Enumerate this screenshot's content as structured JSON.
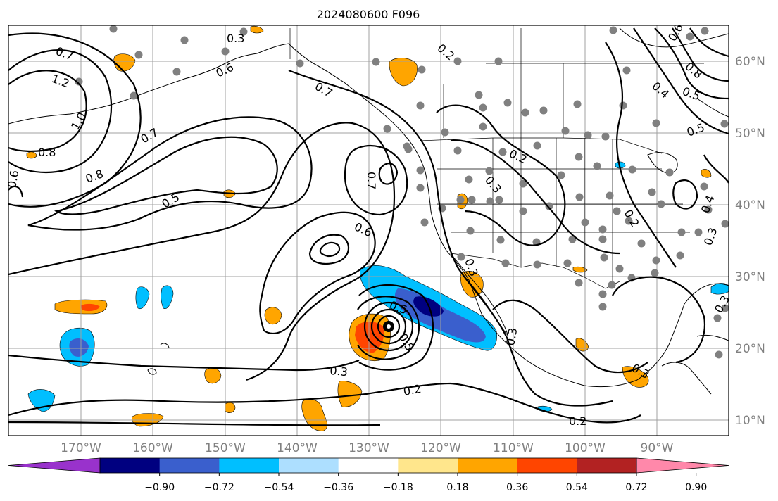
{
  "title": "2024080600 F096",
  "lon_labels": [
    "170°W",
    "160°W",
    "150°W",
    "140°W",
    "130°W",
    "120°W",
    "110°W",
    "100°W",
    "90°W"
  ],
  "lat_labels": [
    "60°N",
    "50°N",
    "40°N",
    "30°N",
    "20°N",
    "10°N"
  ],
  "colorbar": {
    "ticks": [
      "−0.90",
      "−0.72",
      "−0.54",
      "−0.36",
      "−0.18",
      "0.18",
      "0.36",
      "0.54",
      "0.72",
      "0.90"
    ],
    "colors": [
      "#9932CC",
      "#000080",
      "#3A5FCD",
      "#00BFFF",
      "#ADDFFF",
      "#FFFFFF",
      "#FFE68C",
      "#FFA500",
      "#FF4500",
      "#B22222",
      "#FF88AA"
    ]
  },
  "contour_labels": [
    "0.7",
    "1.2",
    "1.0",
    "0.8",
    "0.6",
    "0.7",
    "0.8",
    "0.3",
    "0.6",
    "0.5",
    "0.7",
    "0.7",
    "0.6",
    "0.5",
    "0.3",
    "0.2",
    "0.2",
    "0.3",
    "0.2",
    "0.3",
    "0.2",
    "0.6",
    "0.8",
    "0.4",
    "0.5",
    "0.5",
    "0.4",
    "0.3",
    "0.3",
    "0.3",
    "0.2",
    "0.3",
    "0.5"
  ],
  "station_marker": "gray-dot"
}
